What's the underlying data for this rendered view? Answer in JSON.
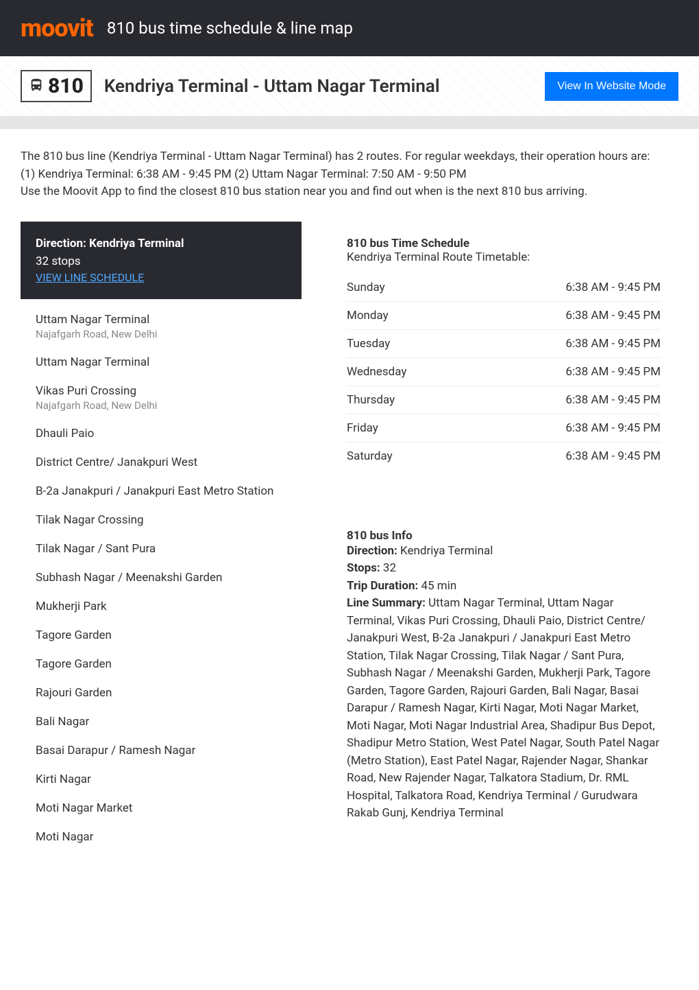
{
  "header": {
    "logo": "moovit",
    "title": "810 bus time schedule & line map"
  },
  "routeBar": {
    "badge": "810",
    "name": "Kendriya Terminal - Uttam Nagar Terminal",
    "viewModeBtn": "View In Website Mode"
  },
  "intro": {
    "line1": "The 810 bus line (Kendriya Terminal - Uttam Nagar Terminal) has 2 routes. For regular weekdays, their operation hours are:",
    "line2": "(1) Kendriya Terminal: 6:38 AM - 9:45 PM (2) Uttam Nagar Terminal: 7:50 AM - 9:50 PM",
    "line3": "Use the Moovit App to find the closest 810 bus station near you and find out when is the next 810 bus arriving."
  },
  "direction": {
    "title": "Direction: Kendriya Terminal",
    "stopsCount": "32 stops",
    "viewSchedule": "VIEW LINE SCHEDULE"
  },
  "stops": [
    {
      "name": "Uttam Nagar Terminal",
      "addr": "Najafgarh Road, New Delhi"
    },
    {
      "name": "Uttam Nagar Terminal"
    },
    {
      "name": "Vikas Puri Crossing",
      "addr": "Najafgarh Road, New Delhi"
    },
    {
      "name": "Dhauli Paio"
    },
    {
      "name": "District Centre/ Janakpuri West"
    },
    {
      "name": "B-2a Janakpuri / Janakpuri East Metro Station"
    },
    {
      "name": "Tilak Nagar Crossing"
    },
    {
      "name": "Tilak Nagar / Sant Pura"
    },
    {
      "name": "Subhash Nagar / Meenakshi Garden"
    },
    {
      "name": "Mukherji Park"
    },
    {
      "name": "Tagore Garden"
    },
    {
      "name": "Tagore Garden"
    },
    {
      "name": "Rajouri Garden"
    },
    {
      "name": "Bali Nagar"
    },
    {
      "name": "Basai Darapur / Ramesh Nagar"
    },
    {
      "name": "Kirti Nagar"
    },
    {
      "name": "Moti Nagar Market"
    },
    {
      "name": "Moti Nagar"
    }
  ],
  "schedule": {
    "title": "810 bus Time Schedule",
    "sub": "Kendriya Terminal Route Timetable:",
    "rows": [
      {
        "day": "Sunday",
        "time": "6:38 AM - 9:45 PM"
      },
      {
        "day": "Monday",
        "time": "6:38 AM - 9:45 PM"
      },
      {
        "day": "Tuesday",
        "time": "6:38 AM - 9:45 PM"
      },
      {
        "day": "Wednesday",
        "time": "6:38 AM - 9:45 PM"
      },
      {
        "day": "Thursday",
        "time": "6:38 AM - 9:45 PM"
      },
      {
        "day": "Friday",
        "time": "6:38 AM - 9:45 PM"
      },
      {
        "day": "Saturday",
        "time": "6:38 AM - 9:45 PM"
      }
    ]
  },
  "info": {
    "title": "810 bus Info",
    "directionLabel": "Direction:",
    "directionValue": " Kendriya Terminal",
    "stopsLabel": "Stops:",
    "stopsValue": " 32",
    "durationLabel": "Trip Duration:",
    "durationValue": " 45 min",
    "summaryLabel": "Line Summary:",
    "summaryValue": " Uttam Nagar Terminal, Uttam Nagar Terminal, Vikas Puri Crossing, Dhauli Paio, District Centre/ Janakpuri West, B-2a Janakpuri / Janakpuri East Metro Station, Tilak Nagar Crossing, Tilak Nagar / Sant Pura, Subhash Nagar / Meenakshi Garden, Mukherji Park, Tagore Garden, Tagore Garden, Rajouri Garden, Bali Nagar, Basai Darapur / Ramesh Nagar, Kirti Nagar, Moti Nagar Market, Moti Nagar, Moti Nagar Industrial Area, Shadipur Bus Depot, Shadipur Metro Station, West Patel Nagar, South Patel Nagar (Metro Station), East Patel Nagar, Rajender Nagar, Shankar Road, New Rajender Nagar, Talkatora Stadium, Dr. RML Hospital, Talkatora Road, Kendriya Terminal / Gurudwara Rakab Gunj, Kendriya Terminal"
  },
  "colors": {
    "headerBg": "#292a30",
    "accent": "#ff6400",
    "link": "#4fa8ff",
    "button": "#0077ff"
  }
}
